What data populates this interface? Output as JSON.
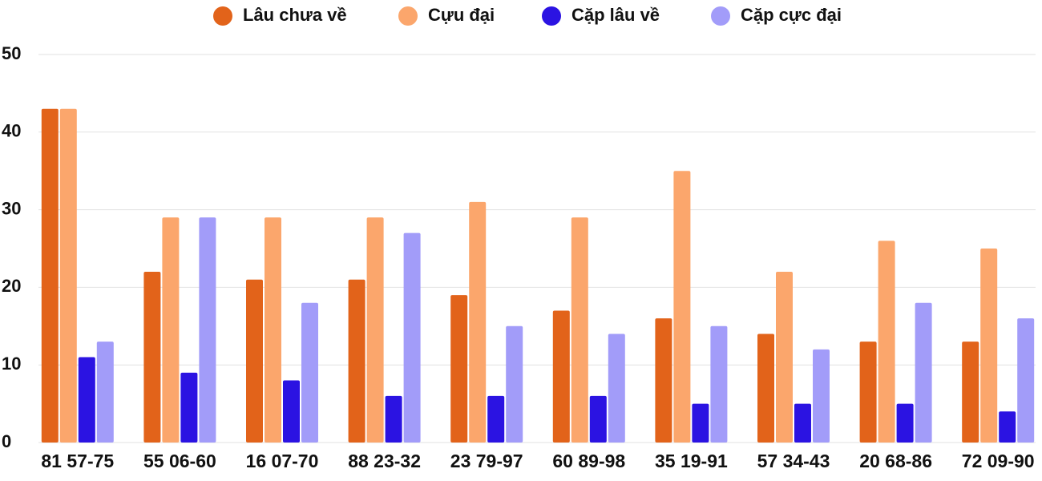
{
  "chart_data": {
    "type": "bar",
    "categories": [
      "81 57-75",
      "55 06-60",
      "16 07-70",
      "88 23-32",
      "23 79-97",
      "60 89-98",
      "35 19-91",
      "57 34-43",
      "20 68-86",
      "72 09-90"
    ],
    "series": [
      {
        "name": "Lâu chưa về",
        "color": "#e2631a",
        "values": [
          43,
          22,
          21,
          21,
          19,
          17,
          16,
          14,
          13,
          13
        ]
      },
      {
        "name": "Cựu đại",
        "color": "#fba66c",
        "values": [
          43,
          29,
          29,
          29,
          31,
          29,
          35,
          22,
          26,
          25
        ]
      },
      {
        "name": "Cặp lâu về",
        "color": "#2b13e2",
        "values": [
          11,
          9,
          8,
          6,
          6,
          6,
          5,
          5,
          5,
          4
        ]
      },
      {
        "name": "Cặp cực đại",
        "color": "#a29cf9",
        "values": [
          13,
          29,
          18,
          27,
          15,
          14,
          15,
          12,
          18,
          16
        ]
      }
    ],
    "ylim": [
      0,
      50
    ],
    "yticks": [
      0,
      10,
      20,
      30,
      40,
      50
    ],
    "grid": true,
    "legend": "top"
  }
}
